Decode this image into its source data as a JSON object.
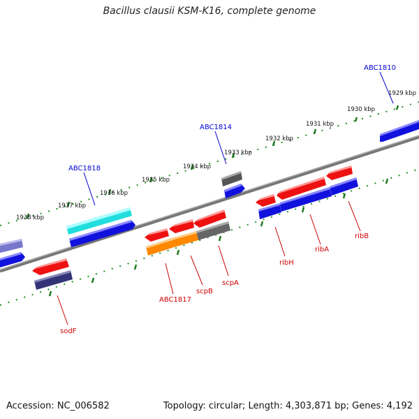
{
  "title": "Bacillus clausii KSM-K16, complete genome",
  "footer": {
    "accession": "Accession: NC_006582",
    "summary": "Topology: circular; Length: 4,303,871 bp; Genes: 4,192"
  },
  "ticks": [
    {
      "label": "1929 kbp"
    },
    {
      "label": "1930 kbp"
    },
    {
      "label": "1931 kbp"
    },
    {
      "label": "1932 kbp"
    },
    {
      "label": "1933 kbp"
    },
    {
      "label": "1934 kbp"
    },
    {
      "label": "1935 kbp"
    },
    {
      "label": "1936 kbp"
    },
    {
      "label": "1937 kbp"
    },
    {
      "label": "1938 kbp"
    }
  ],
  "gene_labels": [
    {
      "name": "ABC1810",
      "color": "#0000cc"
    },
    {
      "name": "ABC1814",
      "color": "#0000cc"
    },
    {
      "name": "ABC1818",
      "color": "#0000cc"
    },
    {
      "name": "ribB",
      "color": "#cc0000"
    },
    {
      "name": "ribA",
      "color": "#cc0000"
    },
    {
      "name": "ribH",
      "color": "#cc0000"
    },
    {
      "name": "scpA",
      "color": "#cc0000"
    },
    {
      "name": "scpB",
      "color": "#cc0000"
    },
    {
      "name": "ABC1817",
      "color": "#cc0000"
    },
    {
      "name": "sodF",
      "color": "#cc0000"
    }
  ],
  "colors": {
    "backbone": "#8a8a8a",
    "tick": "#2a8a2a",
    "red": "#ee1111",
    "blue": "#1111dd",
    "cyan": "#22dddd",
    "gray": "#666666",
    "orange": "#ff8800",
    "navy": "#333377",
    "lavender": "#7777cc"
  }
}
